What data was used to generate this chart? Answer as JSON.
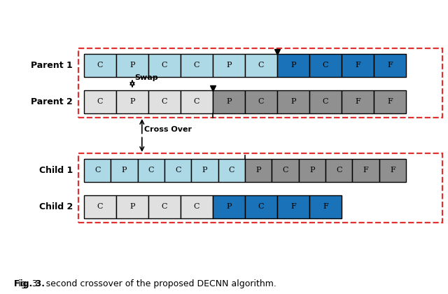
{
  "caption": "Fig. 3.  second crossover of the proposed DECNN algorithm.",
  "parent1_labels": [
    "C",
    "P",
    "C",
    "C",
    "P",
    "C",
    "P",
    "C",
    "F",
    "F"
  ],
  "parent1_colors": [
    "#add8e6",
    "#add8e6",
    "#add8e6",
    "#add8e6",
    "#add8e6",
    "#add8e6",
    "#1a72b8",
    "#1a72b8",
    "#1a72b8",
    "#1a72b8"
  ],
  "parent2_labels": [
    "C",
    "P",
    "C",
    "C",
    "P",
    "C",
    "P",
    "C",
    "F",
    "F"
  ],
  "parent2_colors": [
    "#e0e0e0",
    "#e0e0e0",
    "#e0e0e0",
    "#e0e0e0",
    "#909090",
    "#909090",
    "#909090",
    "#909090",
    "#909090",
    "#909090"
  ],
  "child1_labels": [
    "C",
    "P",
    "C",
    "C",
    "P",
    "C",
    "P",
    "C",
    "P",
    "C",
    "F",
    "F"
  ],
  "child1_colors": [
    "#add8e6",
    "#add8e6",
    "#add8e6",
    "#add8e6",
    "#add8e6",
    "#add8e6",
    "#909090",
    "#909090",
    "#909090",
    "#909090",
    "#909090",
    "#909090"
  ],
  "child2_labels": [
    "C",
    "P",
    "C",
    "C",
    "P",
    "C",
    "F",
    "F"
  ],
  "child2_colors": [
    "#e0e0e0",
    "#e0e0e0",
    "#e0e0e0",
    "#e0e0e0",
    "#1a72b8",
    "#1a72b8",
    "#1a72b8",
    "#1a72b8"
  ],
  "red_dashed": "#e03030",
  "swap_label": "Swap",
  "crossover_label": "Cross Over"
}
